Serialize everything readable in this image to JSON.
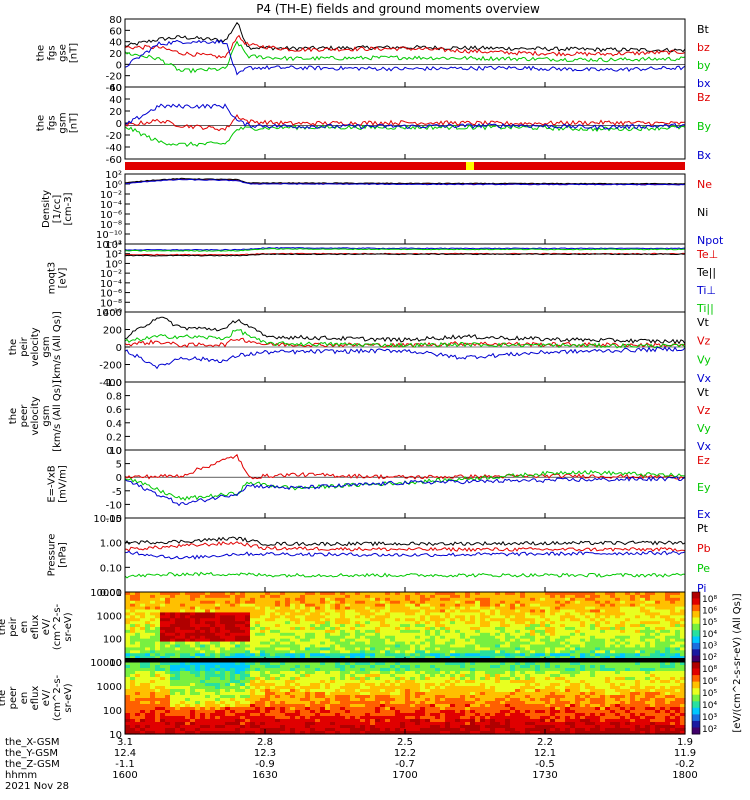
{
  "title": "P4 (TH-E) fields and ground moments overview",
  "colors": {
    "black": "#000000",
    "red": "#e00000",
    "green": "#00c800",
    "blue": "#0000d0",
    "yellow": "#ffff00"
  },
  "chart_data": [
    {
      "type": "line",
      "id": "fgs",
      "ylabel": [
        "the",
        "fgs",
        "gse",
        "[nT]"
      ],
      "ylim": [
        -40,
        80
      ],
      "yticks": [
        "80",
        "60",
        "40",
        "20",
        "0",
        "-20",
        "-40"
      ],
      "series": [
        {
          "name": "Bt",
          "color": "#000000",
          "x": [
            0,
            0.06,
            0.1,
            0.18,
            0.2,
            0.22,
            0.3,
            0.5,
            0.7,
            0.85,
            1
          ],
          "values": [
            32,
            44,
            48,
            42,
            74,
            30,
            28,
            30,
            28,
            26,
            25
          ]
        },
        {
          "name": "bz",
          "color": "#e00000",
          "x": [
            0,
            0.06,
            0.1,
            0.18,
            0.2,
            0.22,
            0.3,
            0.5,
            0.7,
            0.85,
            1
          ],
          "values": [
            30,
            30,
            20,
            12,
            50,
            34,
            26,
            28,
            20,
            18,
            22
          ]
        },
        {
          "name": "by",
          "color": "#00c800",
          "x": [
            0,
            0.06,
            0.1,
            0.18,
            0.2,
            0.22,
            0.3,
            0.5,
            0.7,
            0.85,
            1
          ],
          "values": [
            20,
            10,
            -12,
            -8,
            40,
            14,
            10,
            12,
            10,
            8,
            10
          ]
        },
        {
          "name": "bx",
          "color": "#0000d0",
          "x": [
            0,
            0.06,
            0.1,
            0.18,
            0.2,
            0.22,
            0.3,
            0.5,
            0.7,
            0.85,
            1
          ],
          "values": [
            -4,
            36,
            40,
            40,
            -20,
            -6,
            -6,
            -8,
            -6,
            -10,
            -6
          ]
        }
      ]
    },
    {
      "type": "line",
      "id": "fgs-gsm",
      "ylabel": [
        "the",
        "fgs",
        "gsm",
        "[nT]"
      ],
      "ylim": [
        -70,
        80
      ],
      "yticks": [
        "60",
        "40",
        "20",
        "0",
        "-20",
        "-40",
        "-60"
      ],
      "series": [
        {
          "name": "Bz",
          "color": "#e00000",
          "x": [
            0,
            0.06,
            0.1,
            0.18,
            0.2,
            0.22,
            0.3,
            0.5,
            0.7,
            0.85,
            1
          ],
          "values": [
            0,
            10,
            0,
            -8,
            20,
            8,
            4,
            6,
            4,
            6,
            4
          ]
        },
        {
          "name": "By",
          "color": "#00c800",
          "x": [
            0,
            0.06,
            0.1,
            0.18,
            0.2,
            0.22,
            0.3,
            0.5,
            0.7,
            0.85,
            1
          ],
          "values": [
            -2,
            -34,
            -40,
            -38,
            -8,
            -6,
            -4,
            -4,
            -4,
            -8,
            -4
          ]
        },
        {
          "name": "Bx",
          "color": "#0000d0",
          "x": [
            0,
            0.06,
            0.1,
            0.18,
            0.2,
            0.22,
            0.3,
            0.5,
            0.7,
            0.85,
            1
          ],
          "values": [
            0,
            40,
            40,
            40,
            10,
            0,
            -2,
            -2,
            0,
            -4,
            0
          ]
        }
      ]
    },
    {
      "type": "line",
      "id": "density",
      "ylabel": [
        "Density",
        "[1/cc]",
        "[cm-3]"
      ],
      "ylim": [
        -12,
        3
      ],
      "log": true,
      "yticks": [
        "10²",
        "10⁰",
        "10⁻²",
        "10⁻⁴",
        "10⁻⁶",
        "10⁻⁸",
        "10⁻¹⁰",
        "10⁻¹²"
      ],
      "series": [
        {
          "name": "Ne",
          "color": "#e00000",
          "x": [
            0,
            0.05,
            0.1,
            0.2,
            0.22,
            0.5,
            1
          ],
          "values": [
            1.0,
            1.6,
            1.9,
            1.7,
            1.0,
            0.9,
            0.8
          ]
        },
        {
          "name": "Ni",
          "color": "#000000",
          "x": [
            0,
            0.05,
            0.1,
            0.2,
            0.22,
            0.5,
            1
          ],
          "values": [
            1.1,
            1.7,
            2.0,
            1.8,
            1.1,
            1.0,
            0.9
          ]
        },
        {
          "name": "Npot",
          "color": "#0000d0",
          "x": [
            0,
            0.05,
            0.1,
            0.2,
            0.22,
            0.5,
            1
          ],
          "values": [
            0.9,
            1.5,
            1.8,
            1.6,
            0.9,
            0.8,
            0.7
          ]
        }
      ]
    },
    {
      "type": "line",
      "id": "temperature",
      "ylabel": [
        "moqt3",
        "[eV]"
      ],
      "ylim": [
        -10,
        4
      ],
      "log": true,
      "yticks": [
        "10⁴",
        "10²",
        "10⁰",
        "10⁻²",
        "10⁻⁴",
        "10⁻⁶",
        "10⁻⁸",
        "10⁻¹⁰"
      ],
      "series": [
        {
          "name": "Te⊥",
          "color": "#e00000",
          "x": [
            0,
            0.2,
            0.25,
            0.5,
            1
          ],
          "values": [
            1.8,
            1.8,
            2.0,
            2.0,
            2.0
          ]
        },
        {
          "name": "Te||",
          "color": "#000000",
          "x": [
            0,
            0.2,
            0.25,
            0.5,
            1
          ],
          "values": [
            1.6,
            1.6,
            1.9,
            1.9,
            1.9
          ]
        },
        {
          "name": "Ti⊥",
          "color": "#0000d0",
          "x": [
            0,
            0.2,
            0.25,
            0.5,
            1
          ],
          "values": [
            2.8,
            2.8,
            3.2,
            3.1,
            3.1
          ]
        },
        {
          "name": "Ti||",
          "color": "#00c800",
          "x": [
            0,
            0.2,
            0.25,
            0.5,
            1
          ],
          "values": [
            2.6,
            2.6,
            3.0,
            2.9,
            2.9
          ]
        }
      ]
    },
    {
      "type": "line",
      "id": "peir-velocity",
      "ylabel": [
        "the",
        "peir",
        "velocity",
        "gsm",
        "[km/s (All Qs)]"
      ],
      "ylim": [
        -400,
        400
      ],
      "yticks": [
        "400",
        "200",
        "0",
        "-200",
        "-400"
      ],
      "series": [
        {
          "name": "Vt",
          "color": "#000000",
          "x": [
            0,
            0.06,
            0.1,
            0.18,
            0.2,
            0.25,
            0.5,
            0.6,
            0.75,
            1
          ],
          "values": [
            100,
            350,
            220,
            200,
            320,
            120,
            80,
            120,
            90,
            60
          ]
        },
        {
          "name": "Vz",
          "color": "#e00000",
          "x": [
            0,
            0.06,
            0.1,
            0.18,
            0.2,
            0.25,
            0.5,
            0.6,
            0.75,
            1
          ],
          "values": [
            30,
            60,
            20,
            30,
            100,
            30,
            20,
            40,
            30,
            20
          ]
        },
        {
          "name": "Vy",
          "color": "#00c800",
          "x": [
            0,
            0.06,
            0.1,
            0.18,
            0.2,
            0.25,
            0.5,
            0.6,
            0.75,
            1
          ],
          "values": [
            60,
            120,
            120,
            100,
            200,
            40,
            20,
            30,
            20,
            10
          ]
        },
        {
          "name": "Vx",
          "color": "#0000d0",
          "x": [
            0,
            0.06,
            0.1,
            0.18,
            0.2,
            0.25,
            0.5,
            0.6,
            0.75,
            1
          ],
          "values": [
            -40,
            -230,
            -120,
            -160,
            -100,
            -60,
            -40,
            -120,
            -60,
            -20
          ]
        }
      ]
    },
    {
      "type": "line",
      "id": "peer-velocity",
      "ylabel": [
        "the",
        "peer",
        "velocity",
        "gsm",
        "[km/s (All Qs)]"
      ],
      "ylim": [
        0,
        1
      ],
      "yticks": [
        "1.0",
        "0.8",
        "0.6",
        "0.4",
        "0.2",
        "0.0"
      ],
      "series": [
        {
          "name": "Vt",
          "color": "#000000",
          "values": []
        },
        {
          "name": "Vz",
          "color": "#e00000",
          "values": []
        },
        {
          "name": "Vy",
          "color": "#00c800",
          "values": []
        },
        {
          "name": "Vx",
          "color": "#0000d0",
          "values": []
        }
      ]
    },
    {
      "type": "line",
      "id": "efield",
      "ylabel": [
        "E=-VxB",
        "[mV/m]"
      ],
      "ylim": [
        -15,
        10
      ],
      "yticks": [
        "10",
        "5",
        "0",
        "-5",
        "-10",
        "-15"
      ],
      "series": [
        {
          "name": "Ez",
          "color": "#e00000",
          "x": [
            0,
            0.1,
            0.2,
            0.22,
            0.3,
            0.5,
            0.8,
            1
          ],
          "values": [
            0,
            0.5,
            8,
            0,
            1,
            0,
            0.5,
            0
          ]
        },
        {
          "name": "Ey",
          "color": "#00c800",
          "x": [
            0,
            0.1,
            0.2,
            0.22,
            0.3,
            0.5,
            0.8,
            1
          ],
          "values": [
            0,
            -8,
            -6,
            -2,
            -4,
            -2,
            2,
            0.5
          ]
        },
        {
          "name": "Ex",
          "color": "#0000d0",
          "x": [
            0,
            0.1,
            0.2,
            0.22,
            0.3,
            0.5,
            0.8,
            1
          ],
          "values": [
            -1,
            -10,
            -6,
            -3,
            -4,
            -2,
            -1,
            -0.5
          ]
        }
      ]
    },
    {
      "type": "line",
      "id": "pressure",
      "ylabel": [
        "Pressure",
        "[nPa]"
      ],
      "ylim": [
        -2.3,
        1.0
      ],
      "log": true,
      "yticks": [
        "10.00",
        "1.00",
        "0.10",
        "0.01"
      ],
      "series": [
        {
          "name": "Pt",
          "color": "#000000",
          "x": [
            0,
            0.1,
            0.2,
            0.25,
            0.5,
            1
          ],
          "values": [
            -0.1,
            -0.05,
            0.1,
            -0.15,
            -0.15,
            -0.1
          ]
        },
        {
          "name": "Pb",
          "color": "#e00000",
          "x": [
            0,
            0.1,
            0.2,
            0.25,
            0.5,
            1
          ],
          "values": [
            -0.4,
            -0.25,
            -0.1,
            -0.35,
            -0.4,
            -0.4
          ]
        },
        {
          "name": "Pe",
          "color": "#00c800",
          "x": [
            0,
            0.1,
            0.2,
            0.25,
            0.5,
            1
          ],
          "values": [
            -1.6,
            -1.5,
            -1.5,
            -1.55,
            -1.55,
            -1.55
          ]
        },
        {
          "name": "Pi",
          "color": "#0000d0",
          "x": [
            0,
            0.1,
            0.2,
            0.25,
            0.5,
            1
          ],
          "values": [
            -0.5,
            -0.8,
            -0.6,
            -0.6,
            -0.65,
            -0.55
          ]
        }
      ]
    },
    {
      "type": "heatmap",
      "id": "peir-eflux",
      "ylabel": [
        "the",
        "peir",
        "en",
        "eflux",
        "eV/",
        "(cm^2-s-",
        "sr-eV)"
      ],
      "yticks": [
        "10000",
        "1000",
        "100",
        "10"
      ],
      "colorbar_ticks": [
        "10⁸",
        "10⁶",
        "10⁵",
        "10⁴",
        "10³",
        "10²"
      ],
      "colorbar_label": "[eV/(cm^2-s-sr-eV) (All Qs)]"
    },
    {
      "type": "heatmap",
      "id": "peer-eflux",
      "ylabel": [
        "the",
        "peer",
        "en",
        "eflux",
        "eV/",
        "(cm^2-s-",
        "sr-eV)"
      ],
      "yticks": [
        "10000",
        "1000",
        "100",
        "10"
      ],
      "colorbar_ticks": [
        "10⁸",
        "10⁶",
        "10⁵",
        "10⁴",
        "10³",
        "10²"
      ],
      "colorbar_label": "[eV/(cm^2-s-sr-eV)]"
    }
  ],
  "xaxis": {
    "row_labels": [
      "the_X-GSM",
      "the_Y-GSM",
      "the_Z-GSM",
      "hhmm",
      "2021 Nov 28"
    ],
    "ticks": [
      {
        "x_gsm": "3.1",
        "y_gsm": "12.4",
        "z_gsm": "-1.1",
        "hhmm": "1600"
      },
      {
        "x_gsm": "2.8",
        "y_gsm": "12.3",
        "z_gsm": "-0.9",
        "hhmm": "1630"
      },
      {
        "x_gsm": "2.5",
        "y_gsm": "12.2",
        "z_gsm": "-0.7",
        "hhmm": "1700"
      },
      {
        "x_gsm": "2.2",
        "y_gsm": "12.1",
        "z_gsm": "-0.5",
        "hhmm": "1730"
      },
      {
        "x_gsm": "1.9",
        "y_gsm": "11.9",
        "z_gsm": "-0.2",
        "hhmm": "1800"
      }
    ]
  }
}
